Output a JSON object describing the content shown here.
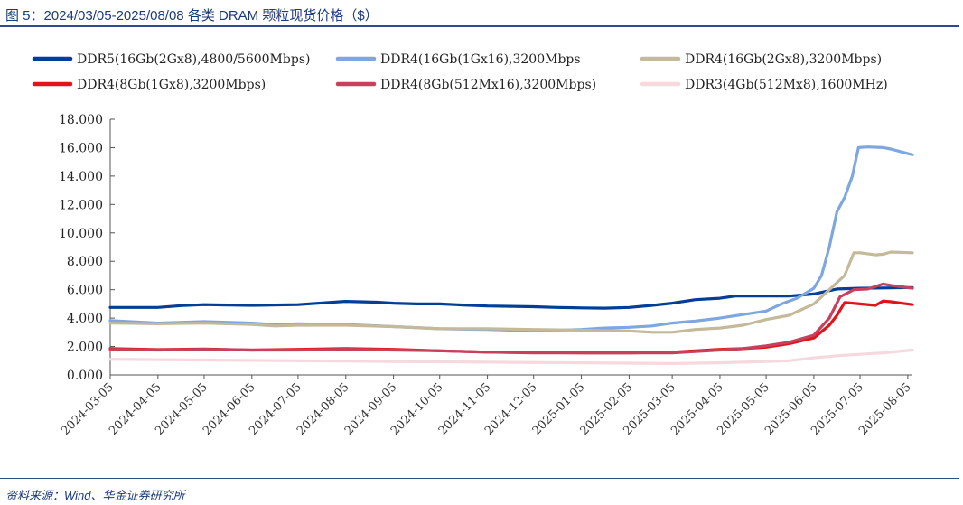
{
  "header": {
    "title": "图 5：2024/03/05-2025/08/08 各类 DRAM 颗粒现货价格（$）"
  },
  "footer": {
    "source": "资料来源：Wind、华金证券研究所"
  },
  "chart_data": {
    "type": "line",
    "title": "图 5：2024/03/05-2025/08/08 各类 DRAM 颗粒现货价格（$）",
    "xlabel": "",
    "ylabel": "",
    "ylim": [
      0,
      18
    ],
    "yticks": [
      "0.000",
      "2.000",
      "4.000",
      "6.000",
      "8.000",
      "10.000",
      "12.000",
      "14.000",
      "16.000",
      "18.000"
    ],
    "xticks": [
      "2024-03-05",
      "2024-04-05",
      "2024-05-05",
      "2024-06-05",
      "2024-07-05",
      "2024-08-05",
      "2024-09-05",
      "2024-10-05",
      "2024-11-05",
      "2024-12-05",
      "2025-01-05",
      "2025-02-05",
      "2025-03-05",
      "2025-04-05",
      "2025-05-05",
      "2025-06-05",
      "2025-07-05",
      "2025-08-05"
    ],
    "xlim": [
      "2024-03-05",
      "2025-08-08"
    ],
    "grid": false,
    "legend_position": "top",
    "series": [
      {
        "name": "DDR5(16Gb(2Gx8),4800/5600Mbps)",
        "color": "#003f98",
        "points": [
          [
            "2024-03-05",
            4.75
          ],
          [
            "2024-04-05",
            4.75
          ],
          [
            "2024-04-20",
            4.88
          ],
          [
            "2024-05-05",
            4.95
          ],
          [
            "2024-05-20",
            4.92
          ],
          [
            "2024-06-05",
            4.9
          ],
          [
            "2024-07-05",
            4.95
          ],
          [
            "2024-07-25",
            5.1
          ],
          [
            "2024-08-05",
            5.18
          ],
          [
            "2024-08-25",
            5.12
          ],
          [
            "2024-09-05",
            5.05
          ],
          [
            "2024-09-20",
            5.0
          ],
          [
            "2024-10-05",
            5.0
          ],
          [
            "2024-10-20",
            4.92
          ],
          [
            "2024-11-05",
            4.85
          ],
          [
            "2024-12-05",
            4.8
          ],
          [
            "2024-12-20",
            4.75
          ],
          [
            "2025-01-05",
            4.72
          ],
          [
            "2025-01-20",
            4.7
          ],
          [
            "2025-02-05",
            4.75
          ],
          [
            "2025-02-20",
            4.9
          ],
          [
            "2025-03-05",
            5.05
          ],
          [
            "2025-03-20",
            5.3
          ],
          [
            "2025-04-05",
            5.4
          ],
          [
            "2025-04-15",
            5.55
          ],
          [
            "2025-05-05",
            5.55
          ],
          [
            "2025-05-20",
            5.55
          ],
          [
            "2025-06-05",
            5.7
          ],
          [
            "2025-06-20",
            6.05
          ],
          [
            "2025-07-05",
            6.1
          ],
          [
            "2025-07-20",
            6.12
          ],
          [
            "2025-08-08",
            6.15
          ]
        ]
      },
      {
        "name": "DDR4(16Gb(1Gx16),3200Mbps",
        "color": "#7ea6e0",
        "points": [
          [
            "2024-03-05",
            3.82
          ],
          [
            "2024-04-05",
            3.65
          ],
          [
            "2024-05-05",
            3.75
          ],
          [
            "2024-06-05",
            3.65
          ],
          [
            "2024-06-20",
            3.55
          ],
          [
            "2024-07-05",
            3.6
          ],
          [
            "2024-08-05",
            3.55
          ],
          [
            "2024-09-05",
            3.4
          ],
          [
            "2024-10-05",
            3.25
          ],
          [
            "2024-11-05",
            3.2
          ],
          [
            "2024-12-05",
            3.1
          ],
          [
            "2025-01-05",
            3.2
          ],
          [
            "2025-01-20",
            3.3
          ],
          [
            "2025-02-05",
            3.35
          ],
          [
            "2025-02-20",
            3.45
          ],
          [
            "2025-03-05",
            3.65
          ],
          [
            "2025-03-20",
            3.8
          ],
          [
            "2025-04-05",
            4.0
          ],
          [
            "2025-04-20",
            4.25
          ],
          [
            "2025-05-05",
            4.5
          ],
          [
            "2025-05-15",
            5.0
          ],
          [
            "2025-05-25",
            5.4
          ],
          [
            "2025-06-05",
            6.1
          ],
          [
            "2025-06-10",
            7.0
          ],
          [
            "2025-06-15",
            9.0
          ],
          [
            "2025-06-20",
            11.5
          ],
          [
            "2025-06-25",
            12.5
          ],
          [
            "2025-06-30",
            14.0
          ],
          [
            "2025-07-04",
            16.0
          ],
          [
            "2025-07-10",
            16.05
          ],
          [
            "2025-07-20",
            16.0
          ],
          [
            "2025-07-25",
            15.9
          ],
          [
            "2025-08-01",
            15.7
          ],
          [
            "2025-08-08",
            15.5
          ]
        ]
      },
      {
        "name": "DDR4(16Gb(2Gx8),3200Mbps)",
        "color": "#c4b998",
        "points": [
          [
            "2024-03-05",
            3.65
          ],
          [
            "2024-04-05",
            3.6
          ],
          [
            "2024-05-05",
            3.65
          ],
          [
            "2024-06-05",
            3.55
          ],
          [
            "2024-06-20",
            3.45
          ],
          [
            "2024-07-05",
            3.5
          ],
          [
            "2024-08-05",
            3.5
          ],
          [
            "2024-09-05",
            3.4
          ],
          [
            "2024-10-05",
            3.25
          ],
          [
            "2024-11-05",
            3.25
          ],
          [
            "2024-12-05",
            3.2
          ],
          [
            "2025-01-05",
            3.15
          ],
          [
            "2025-02-05",
            3.1
          ],
          [
            "2025-02-20",
            3.0
          ],
          [
            "2025-03-05",
            3.0
          ],
          [
            "2025-03-20",
            3.2
          ],
          [
            "2025-04-05",
            3.3
          ],
          [
            "2025-04-20",
            3.5
          ],
          [
            "2025-05-05",
            3.9
          ],
          [
            "2025-05-20",
            4.2
          ],
          [
            "2025-06-05",
            5.0
          ],
          [
            "2025-06-15",
            6.0
          ],
          [
            "2025-06-25",
            7.0
          ],
          [
            "2025-07-01",
            8.6
          ],
          [
            "2025-07-05",
            8.6
          ],
          [
            "2025-07-15",
            8.45
          ],
          [
            "2025-07-20",
            8.5
          ],
          [
            "2025-07-25",
            8.65
          ],
          [
            "2025-08-08",
            8.6
          ]
        ]
      },
      {
        "name": "DDR4(8Gb(1Gx8),3200Mbps)",
        "color": "#e3121b",
        "points": [
          [
            "2024-03-05",
            1.85
          ],
          [
            "2024-04-05",
            1.78
          ],
          [
            "2024-05-05",
            1.82
          ],
          [
            "2024-06-05",
            1.75
          ],
          [
            "2024-07-05",
            1.8
          ],
          [
            "2024-08-05",
            1.85
          ],
          [
            "2024-09-05",
            1.8
          ],
          [
            "2024-10-05",
            1.7
          ],
          [
            "2024-11-05",
            1.6
          ],
          [
            "2024-12-05",
            1.58
          ],
          [
            "2025-01-05",
            1.55
          ],
          [
            "2025-02-05",
            1.55
          ],
          [
            "2025-03-05",
            1.6
          ],
          [
            "2025-03-20",
            1.7
          ],
          [
            "2025-04-05",
            1.8
          ],
          [
            "2025-04-20",
            1.85
          ],
          [
            "2025-05-05",
            1.95
          ],
          [
            "2025-05-20",
            2.2
          ],
          [
            "2025-06-05",
            2.6
          ],
          [
            "2025-06-15",
            3.5
          ],
          [
            "2025-06-20",
            4.2
          ],
          [
            "2025-06-25",
            5.1
          ],
          [
            "2025-07-05",
            5.0
          ],
          [
            "2025-07-15",
            4.9
          ],
          [
            "2025-07-20",
            5.2
          ],
          [
            "2025-07-25",
            5.15
          ],
          [
            "2025-08-01",
            5.05
          ],
          [
            "2025-08-08",
            4.95
          ]
        ]
      },
      {
        "name": "DDR4(8Gb(512Mx16),3200Mbps)",
        "color": "#c8405c",
        "points": [
          [
            "2024-03-05",
            1.8
          ],
          [
            "2024-04-05",
            1.75
          ],
          [
            "2024-05-05",
            1.8
          ],
          [
            "2024-06-05",
            1.75
          ],
          [
            "2024-07-05",
            1.75
          ],
          [
            "2024-08-05",
            1.8
          ],
          [
            "2024-09-05",
            1.75
          ],
          [
            "2024-10-05",
            1.7
          ],
          [
            "2024-11-05",
            1.6
          ],
          [
            "2024-12-05",
            1.55
          ],
          [
            "2025-01-05",
            1.55
          ],
          [
            "2025-02-05",
            1.55
          ],
          [
            "2025-03-05",
            1.55
          ],
          [
            "2025-03-20",
            1.65
          ],
          [
            "2025-04-05",
            1.75
          ],
          [
            "2025-04-20",
            1.85
          ],
          [
            "2025-05-05",
            2.05
          ],
          [
            "2025-05-20",
            2.3
          ],
          [
            "2025-06-05",
            2.8
          ],
          [
            "2025-06-15",
            4.0
          ],
          [
            "2025-06-22",
            5.5
          ],
          [
            "2025-07-01",
            6.0
          ],
          [
            "2025-07-10",
            6.05
          ],
          [
            "2025-07-20",
            6.4
          ],
          [
            "2025-07-25",
            6.3
          ],
          [
            "2025-08-01",
            6.2
          ],
          [
            "2025-08-08",
            6.1
          ]
        ]
      },
      {
        "name": "DDR3(4Gb(512Mx8),1600MHz)",
        "color": "#f7d8df",
        "points": [
          [
            "2024-03-05",
            1.1
          ],
          [
            "2024-05-05",
            1.05
          ],
          [
            "2024-07-05",
            1.0
          ],
          [
            "2024-09-05",
            0.95
          ],
          [
            "2024-11-05",
            0.9
          ],
          [
            "2025-01-05",
            0.85
          ],
          [
            "2025-03-05",
            0.8
          ],
          [
            "2025-04-05",
            0.85
          ],
          [
            "2025-05-05",
            0.95
          ],
          [
            "2025-05-20",
            1.0
          ],
          [
            "2025-06-05",
            1.2
          ],
          [
            "2025-06-20",
            1.35
          ],
          [
            "2025-07-05",
            1.45
          ],
          [
            "2025-07-20",
            1.55
          ],
          [
            "2025-08-08",
            1.75
          ]
        ]
      }
    ]
  }
}
